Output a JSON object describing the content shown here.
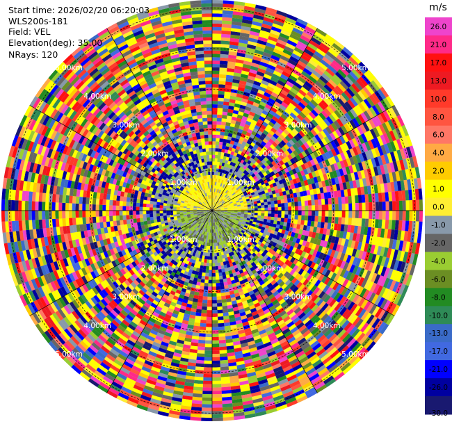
{
  "header": {
    "start_time": "Start time: 2026/02/20 06:20:03",
    "instrument": "WLS200s-181",
    "field": "Field: VEL",
    "elevation": "Elevation(deg): 35.00",
    "nrays": "NRays: 120"
  },
  "chart_data": {
    "type": "heatmap",
    "projection": "polar-ppi",
    "field": "VEL",
    "units": "m/s",
    "nrays": 120,
    "elevation_deg": 35.0,
    "range_rings_km": [
      1.0,
      2.0,
      3.0,
      4.0,
      5.0
    ],
    "range_ring_labels": [
      "1.00km",
      "2.00km",
      "3.00km",
      "4.00km",
      "5.00km"
    ],
    "max_range_km": 5.2,
    "num_range_gates": 62,
    "near_range_km": 0.05,
    "color_scale": {
      "tick_labels": [
        "26.0",
        "21.0",
        "17.0",
        "13.0",
        "10.0",
        "8.0",
        "6.0",
        "4.0",
        "2.0",
        "1.0",
        "0.0",
        "-1.0",
        "-2.0",
        "-4.0",
        "-6.0",
        "-8.0",
        "-10.0",
        "-13.0",
        "-17.0",
        "-21.0",
        "-26.0",
        "-30.0"
      ],
      "bin_colors": [
        "#ee44cc",
        "#ff2a88",
        "#ff1111",
        "#ee1a22",
        "#ff3a2a",
        "#ff5540",
        "#ff7766",
        "#ffaa44",
        "#ffcc00",
        "#ffff00",
        "#ffee33",
        "#8899aa",
        "#666666",
        "#9acd32",
        "#6b8e23",
        "#228b22",
        "#2e8b57",
        "#3a6bc8",
        "#4169e1",
        "#0000ff",
        "#0000a0",
        "#191970"
      ]
    }
  }
}
